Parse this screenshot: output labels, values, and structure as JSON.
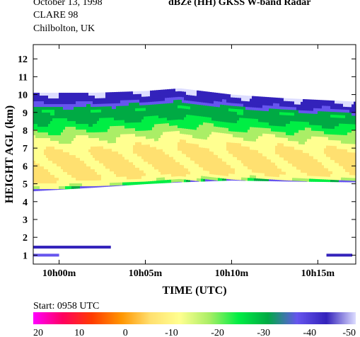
{
  "header": {
    "info_lines": [
      "October 13, 1998",
      "CLARE 98",
      "Chilbolton, UK"
    ],
    "title": "dBZe (HH)   GKSS  W-band Radar"
  },
  "footer": {
    "start_label": "Start: 0958 UTC"
  },
  "colors": {
    "scale": [
      "#ff00ff",
      "#ff0060",
      "#ff3b00",
      "#ff9500",
      "#ffe070",
      "#ffff90",
      "#aaee66",
      "#00ee44",
      "#00aa44",
      "#6655ee",
      "#3322bb",
      "#ddddff"
    ]
  },
  "chart_data": {
    "type": "heatmap",
    "title": "dBZe (HH)   GKSS  W-band Radar",
    "xlabel": "TIME (UTC)",
    "ylabel": "HEIGHT AGL (km)",
    "x_ticks": [
      "10h00m",
      "10h05m",
      "10h10m",
      "10h15m"
    ],
    "x_tick_minutes": [
      0,
      5,
      10,
      15
    ],
    "xlim_minutes_after_10h00": [
      -1.5,
      17.2
    ],
    "y_ticks": [
      1,
      2,
      3,
      4,
      5,
      6,
      7,
      8,
      9,
      10,
      11,
      12
    ],
    "ylim_km": [
      0.5,
      12.8
    ],
    "colorbar": {
      "ticks": [
        20,
        10,
        0,
        -10,
        -20,
        -30,
        -40,
        -50
      ],
      "labels": [
        "20",
        "10",
        "0",
        "-10",
        "-20",
        "-30",
        "-40",
        "-50"
      ],
      "range": [
        20,
        -50
      ]
    },
    "layers": [
      {
        "name": "cloud",
        "time_minutes": [
          -1.5,
          2,
          5,
          7,
          10,
          13,
          17.2
        ],
        "base_km": [
          4.6,
          4.8,
          5.0,
          5.1,
          5.2,
          5.15,
          5.1
        ],
        "top_km": [
          10.1,
          10.1,
          10.2,
          10.35,
          10.0,
          9.8,
          9.6
        ],
        "dbze_profile": [
          {
            "height_frac": 0.0,
            "dbze": -35
          },
          {
            "height_frac": 0.02,
            "dbze": -15
          },
          {
            "height_frac": 0.1,
            "dbze": -8
          },
          {
            "height_frac": 0.35,
            "dbze": -8
          },
          {
            "height_frac": 0.5,
            "dbze": -14
          },
          {
            "height_frac": 0.62,
            "dbze": -22
          },
          {
            "height_frac": 0.75,
            "dbze": -30
          },
          {
            "height_frac": 0.82,
            "dbze": -28
          },
          {
            "height_frac": 0.9,
            "dbze": -40
          },
          {
            "height_frac": 1.0,
            "dbze": -44
          }
        ]
      },
      {
        "name": "low-level echo",
        "time_minutes": [
          -1.5,
          3
        ],
        "height_km": 1.45,
        "dbze": -40
      },
      {
        "name": "near-surface echo",
        "time_minutes": [
          -1.5,
          0
        ],
        "height_km": 1.0,
        "dbze": -38
      },
      {
        "name": "near-surface echo",
        "time_minutes": [
          15.5,
          17
        ],
        "height_km": 1.0,
        "dbze": -40
      }
    ]
  }
}
